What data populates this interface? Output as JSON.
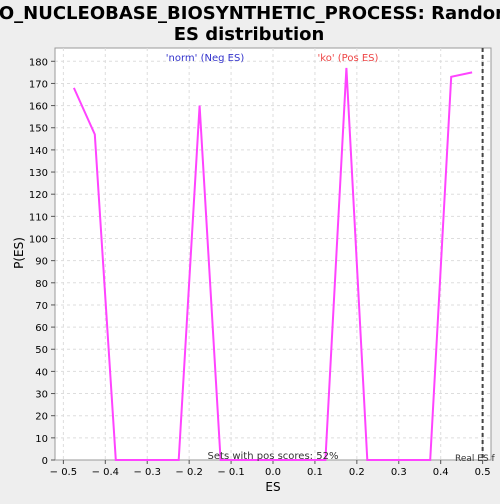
{
  "chart_data": {
    "type": "line",
    "title_line1": "GO_NUCLEOBASE_BIOSYNTHETIC_PROCESS: Random",
    "title_line2": "ES distribution",
    "xlabel": "ES",
    "ylabel": "P(ES)",
    "xlim": [
      -0.52,
      0.52
    ],
    "ylim": [
      0,
      186
    ],
    "x_ticks": [
      -0.5,
      -0.4,
      -0.3,
      -0.2,
      -0.1,
      0.0,
      0.1,
      0.2,
      0.3,
      0.4,
      0.5
    ],
    "x_tick_labels": [
      "− 0.5",
      "− 0.4",
      "− 0.3",
      "− 0.2",
      "− 0.1",
      "0.0",
      "0.1",
      "0.2",
      "0.3",
      "0.4",
      "0.5"
    ],
    "y_ticks": [
      0,
      10,
      20,
      30,
      40,
      50,
      60,
      70,
      80,
      90,
      100,
      110,
      120,
      130,
      140,
      150,
      160,
      170,
      180
    ],
    "grid": true,
    "series": [
      {
        "color": "#ff44ff",
        "x": [
          -0.475,
          -0.425,
          -0.375,
          -0.325,
          -0.275,
          -0.225,
          -0.175,
          -0.125,
          -0.075,
          -0.025,
          0.025,
          0.075,
          0.125,
          0.175,
          0.225,
          0.275,
          0.325,
          0.375,
          0.425,
          0.475
        ],
        "y": [
          168,
          147,
          0,
          0,
          0,
          0,
          160,
          0,
          0,
          0,
          0,
          0,
          0,
          177,
          0,
          0,
          0,
          0,
          173,
          175
        ]
      }
    ],
    "real_es_x": 0.5,
    "annotations": {
      "neg_label": "'norm' (Neg ES)",
      "pos_label": "'ko' (Pos ES)",
      "sets_label": "Sets with pos scores: 52%",
      "real_es_label": "Real ES f"
    },
    "colors": {
      "neg": "#3333cc",
      "pos": "#ee4444",
      "line": "#ff44ff"
    }
  }
}
